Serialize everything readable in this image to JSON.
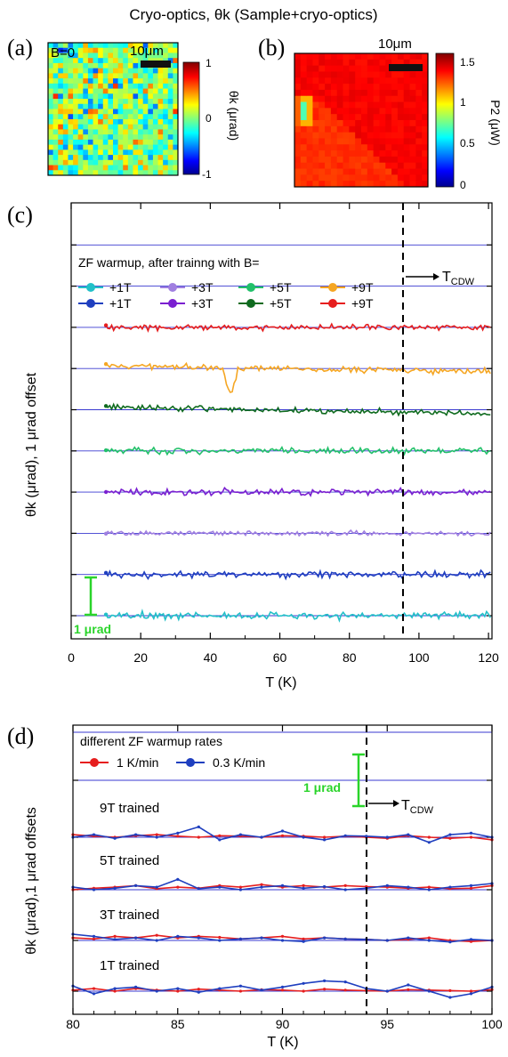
{
  "figure_title": "Cryo-optics, θk (Sample+cryo-optics)",
  "panel_a": {
    "label": "(a)",
    "field_label": "B=0",
    "scalebar_label": "10μm",
    "colorbar_label": "θk (μrad)",
    "colorbar_ticks": [
      "1",
      "0",
      "-1"
    ]
  },
  "panel_b": {
    "label": "(b)",
    "scalebar_label": "10μm",
    "colorbar_label": "P2 (μW)",
    "colorbar_ticks": [
      "1.5",
      "1",
      "0.5",
      "0"
    ]
  },
  "panel_c": {
    "label": "(c)",
    "legend_title": "ZF warmup, after trainng with  B=",
    "legend_row1": [
      "+1T",
      "+3T",
      "+5T",
      "+9T"
    ],
    "legend_row2": [
      "+1T",
      "+3T",
      "+5T",
      "+9T"
    ],
    "tcdw_label": "T",
    "tcdw_sub": "CDW",
    "scale_label": "1 μrad",
    "ylabel": "θk (μrad), 1 μrad offset",
    "xlabel": "T (K)",
    "xticks": [
      "0",
      "20",
      "40",
      "60",
      "80",
      "100",
      "120"
    ]
  },
  "panel_d": {
    "label": "(d)",
    "legend_title": "different ZF warmup rates",
    "legend_items": [
      "1 K/min",
      "0.3 K/min"
    ],
    "scale_label": "1 μrad",
    "tcdw_label": "T",
    "tcdw_sub": "CDW",
    "trace_labels": [
      "9T trained",
      "5T trained",
      "3T trained",
      "1T trained"
    ],
    "ylabel": "θk (μrad),1 μrad offsets",
    "xlabel": "T (K)",
    "xticks": [
      "80",
      "85",
      "90",
      "95",
      "100"
    ]
  },
  "colors": {
    "cyan": "#22c0c8",
    "blue": "#1f3fbf",
    "lavender": "#a07fe0",
    "purple": "#7a1fd0",
    "lightgreen": "#22c06a",
    "darkgreen": "#0f6b1f",
    "orange": "#f5a623",
    "red": "#e61e1e",
    "baseline": "#3a3ad0",
    "scale_green": "#2ad42a"
  },
  "chart_data": [
    {
      "type": "line",
      "title": "",
      "xlabel": "T (K)",
      "ylabel": "θk (μrad), 1 μrad offset",
      "xlim": [
        0,
        121
      ],
      "tcdw": 95,
      "series": [
        {
          "name": "+1T",
          "color": "#22c0c8",
          "offset": 0,
          "x_start": 10,
          "x_end": 121,
          "noise": 0.08
        },
        {
          "name": "+1T",
          "color": "#1f3fbf",
          "offset": 1,
          "x_start": 10,
          "x_end": 121,
          "noise": 0.08
        },
        {
          "name": "+3T",
          "color": "#a07fe0",
          "offset": 2,
          "x_start": 10,
          "x_end": 121,
          "noise": 0.06
        },
        {
          "name": "+3T",
          "color": "#7a1fd0",
          "offset": 3,
          "x_start": 10,
          "x_end": 121,
          "noise": 0.08
        },
        {
          "name": "+5T",
          "color": "#22c06a",
          "offset": 4,
          "x_start": 10,
          "x_end": 121,
          "noise": 0.08
        },
        {
          "name": "+5T",
          "color": "#0f6b1f",
          "offset": 5,
          "x_start": 10,
          "x_end": 121,
          "noise": 0.07
        },
        {
          "name": "+9T",
          "color": "#f5a623",
          "offset": 6,
          "x_start": 10,
          "x_end": 121,
          "noise": 0.08
        },
        {
          "name": "+9T",
          "color": "#e61e1e",
          "offset": 7,
          "x_start": 10,
          "x_end": 121,
          "noise": 0.07
        }
      ]
    },
    {
      "type": "line",
      "title": "",
      "xlabel": "T (K)",
      "ylabel": "θk (μrad),1 μrad offsets",
      "xlim": [
        80,
        100
      ],
      "tcdw": 94,
      "series": [
        {
          "name": "1 K/min",
          "trace": "1T trained",
          "color": "#e61e1e",
          "x": [
            80,
            81,
            82,
            83,
            84,
            85,
            86,
            87,
            88,
            89,
            90,
            91,
            92,
            93,
            94,
            95,
            96,
            97,
            98,
            99,
            100
          ],
          "y": [
            0.02,
            0.05,
            0.0,
            0.05,
            0.02,
            0.0,
            0.04,
            0.02,
            0.0,
            0.03,
            0.02,
            0.0,
            0.04,
            0.02,
            0.01,
            0.0,
            0.03,
            0.02,
            0.01,
            0.0,
            0.03
          ]
        },
        {
          "name": "0.3 K/min",
          "trace": "1T trained",
          "color": "#1f3fbf",
          "x": [
            80,
            81,
            82,
            83,
            84,
            85,
            86,
            87,
            88,
            89,
            90,
            91,
            92,
            93,
            94,
            95,
            96,
            97,
            98,
            99,
            100
          ],
          "y": [
            0.1,
            -0.05,
            0.05,
            0.08,
            0.0,
            0.05,
            -0.02,
            0.05,
            0.1,
            0.02,
            0.08,
            0.15,
            0.2,
            0.18,
            0.05,
            0.0,
            0.12,
            0.0,
            -0.12,
            -0.05,
            0.08
          ]
        },
        {
          "name": "1 K/min",
          "trace": "3T trained",
          "color": "#e61e1e",
          "x": [
            80,
            81,
            82,
            83,
            84,
            85,
            86,
            87,
            88,
            89,
            90,
            91,
            92,
            93,
            94,
            95,
            96,
            97,
            98,
            99,
            100
          ],
          "y": [
            0.05,
            0.03,
            0.08,
            0.05,
            0.1,
            0.05,
            0.08,
            0.06,
            0.03,
            0.05,
            0.08,
            0.03,
            0.05,
            0.03,
            0.02,
            0.0,
            0.02,
            0.05,
            0.0,
            -0.02,
            0.0
          ]
        },
        {
          "name": "0.3 K/min",
          "trace": "3T trained",
          "color": "#1f3fbf",
          "x": [
            80,
            81,
            82,
            83,
            84,
            85,
            86,
            87,
            88,
            89,
            90,
            91,
            92,
            93,
            94,
            95,
            96,
            97,
            98,
            99,
            100
          ],
          "y": [
            0.12,
            0.08,
            0.02,
            0.05,
            0.0,
            0.08,
            0.05,
            0.0,
            0.03,
            0.05,
            0.0,
            -0.02,
            0.05,
            0.03,
            0.02,
            0.0,
            0.05,
            0.0,
            -0.03,
            0.02,
            0.0
          ]
        },
        {
          "name": "1 K/min",
          "trace": "5T trained",
          "color": "#e61e1e",
          "x": [
            80,
            81,
            82,
            83,
            84,
            85,
            86,
            87,
            88,
            89,
            90,
            91,
            92,
            93,
            94,
            95,
            96,
            97,
            98,
            99,
            100
          ],
          "y": [
            0.0,
            0.03,
            0.05,
            0.08,
            0.02,
            0.05,
            0.03,
            0.08,
            0.05,
            0.1,
            0.05,
            0.08,
            0.05,
            0.08,
            0.06,
            0.05,
            0.03,
            0.05,
            0.02,
            0.03,
            0.08
          ]
        },
        {
          "name": "0.3 K/min",
          "trace": "5T trained",
          "color": "#1f3fbf",
          "x": [
            80,
            81,
            82,
            83,
            84,
            85,
            86,
            87,
            88,
            89,
            90,
            91,
            92,
            93,
            94,
            95,
            96,
            97,
            98,
            99,
            100
          ],
          "y": [
            0.05,
            0.0,
            0.03,
            0.08,
            0.05,
            0.2,
            0.02,
            0.05,
            0.0,
            0.05,
            0.08,
            0.03,
            0.06,
            0.0,
            0.03,
            0.08,
            0.05,
            0.0,
            0.05,
            0.08,
            0.12
          ]
        },
        {
          "name": "1 K/min",
          "trace": "9T trained",
          "color": "#e61e1e",
          "x": [
            80,
            81,
            82,
            83,
            84,
            85,
            86,
            87,
            88,
            89,
            90,
            91,
            92,
            93,
            94,
            95,
            96,
            97,
            98,
            99,
            100
          ],
          "y": [
            0.05,
            0.02,
            0.0,
            0.03,
            0.05,
            0.02,
            0.0,
            0.03,
            0.02,
            0.0,
            0.03,
            0.02,
            0.0,
            0.02,
            0.0,
            -0.02,
            0.03,
            0.0,
            -0.02,
            0.0,
            -0.05
          ]
        },
        {
          "name": "0.3 K/min",
          "trace": "9T trained",
          "color": "#1f3fbf",
          "x": [
            80,
            81,
            82,
            83,
            84,
            85,
            86,
            87,
            88,
            89,
            90,
            91,
            92,
            93,
            94,
            95,
            96,
            97,
            98,
            99,
            100
          ],
          "y": [
            0.0,
            0.05,
            -0.02,
            0.05,
            0.0,
            0.08,
            0.2,
            -0.05,
            0.05,
            0.0,
            0.12,
            0.0,
            -0.05,
            0.03,
            0.02,
            0.0,
            0.05,
            -0.1,
            0.05,
            0.08,
            0.0
          ]
        }
      ]
    }
  ]
}
